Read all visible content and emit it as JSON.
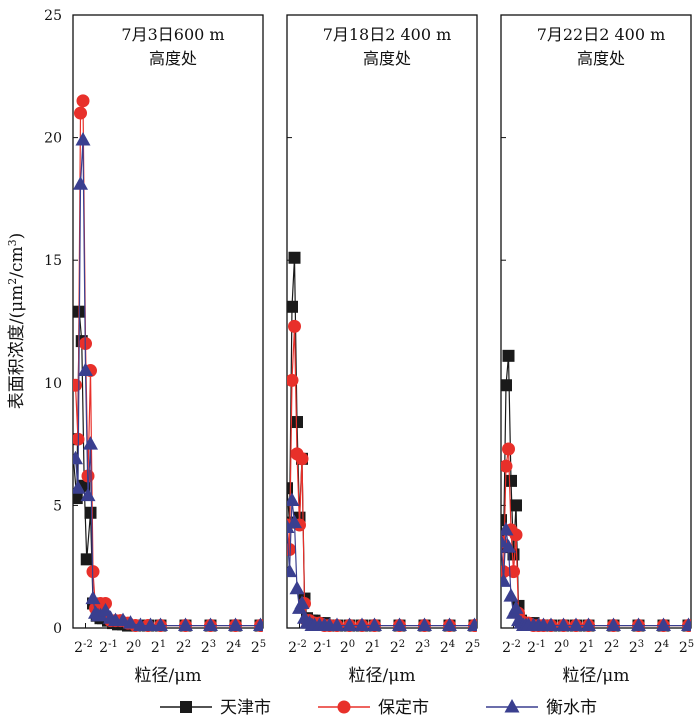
{
  "chart_data": {
    "type": "line",
    "ylabel_main": "表面积浓度/(μm",
    "ylabel_sup1": "2",
    "ylabel_mid": "/cm",
    "ylabel_sup2": "3",
    "ylabel_end": ")",
    "xlabel": "粒径/μm",
    "ylim": [
      0,
      25
    ],
    "yticks": [
      "0",
      "5",
      "10",
      "15",
      "20",
      "25"
    ],
    "xscale": "log2",
    "xlim_log2": [
      -2.5,
      5.1
    ],
    "xtick_exponents": [
      "-2",
      "-1",
      "0",
      "1",
      "2",
      "3",
      "4",
      "5"
    ],
    "xtick_base": "2",
    "legend": [
      {
        "name": "天津市",
        "color": "#1a1a1a",
        "marker": "square"
      },
      {
        "name": "保定市",
        "color": "#e8302a",
        "marker": "circle"
      },
      {
        "name": "衡水市",
        "color": "#3a3f8f",
        "marker": "triangle"
      }
    ],
    "panels": [
      {
        "title_line1": "7月3日600 m",
        "title_line2": "高度处",
        "series": [
          {
            "name": "天津市",
            "x": [
              -2.55,
              -2.35,
              -2.25,
              -2.15,
              -2.05,
              -1.95,
              -1.8,
              -1.7,
              -1.55,
              -1.4,
              -1.3,
              -1.1,
              -0.9,
              -0.7,
              -0.5,
              -0.3,
              0,
              0.5,
              1,
              2,
              3,
              4,
              5
            ],
            "y": [
              7.7,
              5.3,
              12.9,
              11.7,
              5.8,
              2.8,
              4.7,
              1.0,
              0.5,
              0.4,
              0.4,
              0.3,
              0.2,
              0.15,
              0.15,
              0.1,
              0.1,
              0.1,
              0.1,
              0.1,
              0.1,
              0.1,
              0.1
            ]
          },
          {
            "name": "保定市",
            "x": [
              -2.4,
              -2.3,
              -2.2,
              -2.1,
              -2.0,
              -1.9,
              -1.8,
              -1.7,
              -1.6,
              -1.5,
              -1.4,
              -1.3,
              -1.2,
              -1.0,
              -0.8,
              -0.6,
              -0.3,
              0,
              0.5,
              1,
              2,
              3,
              4,
              5
            ],
            "y": [
              9.9,
              7.7,
              21.0,
              21.5,
              11.6,
              6.2,
              10.5,
              2.3,
              0.8,
              0.7,
              1.0,
              0.9,
              1.0,
              0.3,
              0.3,
              0.3,
              0.2,
              0.1,
              0.1,
              0.1,
              0.1,
              0.1,
              0.1,
              0.1
            ]
          },
          {
            "name": "衡水市",
            "x": [
              -2.4,
              -2.3,
              -2.2,
              -2.1,
              -2.0,
              -1.9,
              -1.8,
              -1.7,
              -1.6,
              -1.5,
              -1.4,
              -1.2,
              -1.0,
              -0.8,
              -0.5,
              -0.2,
              0.2,
              0.6,
              1,
              2,
              3,
              4,
              5
            ],
            "y": [
              6.9,
              5.7,
              18.1,
              19.9,
              10.5,
              5.4,
              7.5,
              1.2,
              0.6,
              0.5,
              0.5,
              0.7,
              0.4,
              0.3,
              0.3,
              0.2,
              0.1,
              0.1,
              0.1,
              0.1,
              0.1,
              0.1,
              0.1
            ]
          }
        ]
      },
      {
        "title_line1": "7月18日2 400 m",
        "title_line2": "高度处",
        "series": [
          {
            "name": "天津市",
            "x": [
              -2.5,
              -2.4,
              -2.3,
              -2.2,
              -2.1,
              -2.0,
              -1.9,
              -1.8,
              -1.7,
              -1.6,
              -1.5,
              -1.4,
              -1.2,
              -1.0,
              -0.8,
              -0.5,
              0,
              0.5,
              1,
              2,
              3,
              4,
              5
            ],
            "y": [
              5.7,
              4.3,
              13.1,
              15.1,
              8.4,
              4.5,
              6.9,
              1.2,
              0.4,
              0.3,
              0.3,
              0.3,
              0.2,
              0.2,
              0.1,
              0.1,
              0.1,
              0.1,
              0.1,
              0.1,
              0.1,
              0.1,
              0.1
            ]
          },
          {
            "name": "保定市",
            "x": [
              -2.5,
              -2.4,
              -2.3,
              -2.2,
              -2.1,
              -2.0,
              -1.9,
              -1.8,
              -1.7,
              -1.6,
              -1.5,
              -1.4,
              -1.2,
              -1.0,
              -0.8,
              -0.5,
              0,
              0.5,
              1,
              2,
              3,
              4,
              5
            ],
            "y": [
              4.2,
              3.2,
              10.1,
              12.3,
              7.1,
              4.2,
              6.9,
              1.0,
              0.3,
              0.3,
              0.2,
              0.2,
              0.2,
              0.1,
              0.1,
              0.1,
              0.1,
              0.1,
              0.1,
              0.1,
              0.1,
              0.1,
              0.1
            ]
          },
          {
            "name": "衡水市",
            "x": [
              -2.5,
              -2.4,
              -2.3,
              -2.2,
              -2.1,
              -2.0,
              -1.9,
              -1.8,
              -1.7,
              -1.6,
              -1.5,
              -1.4,
              -1.2,
              -1.0,
              -0.8,
              -0.5,
              0,
              0.5,
              1,
              2,
              3,
              4,
              5
            ],
            "y": [
              4.1,
              2.3,
              5.2,
              4.3,
              1.6,
              0.8,
              1.0,
              0.4,
              0.2,
              0.2,
              0.1,
              0.1,
              0.1,
              0.1,
              0.1,
              0.1,
              0.1,
              0.1,
              0.1,
              0.1,
              0.1,
              0.1,
              0.1
            ]
          }
        ]
      },
      {
        "title_line1": "7月22日2 400 m",
        "title_line2": "高度处",
        "series": [
          {
            "name": "天津市",
            "x": [
              -2.5,
              -2.4,
              -2.3,
              -2.2,
              -2.1,
              -2.0,
              -1.9,
              -1.8,
              -1.7,
              -1.6,
              -1.5,
              -1.4,
              -1.2,
              -1.0,
              -0.8,
              -0.5,
              0,
              0.5,
              1,
              2,
              3,
              4,
              5
            ],
            "y": [
              4.4,
              3.3,
              9.9,
              11.1,
              6.0,
              3.0,
              5.0,
              0.9,
              0.3,
              0.2,
              0.2,
              0.2,
              0.2,
              0.1,
              0.1,
              0.1,
              0.1,
              0.1,
              0.1,
              0.1,
              0.1,
              0.1,
              0.1
            ]
          },
          {
            "name": "保定市",
            "x": [
              -2.5,
              -2.4,
              -2.3,
              -2.2,
              -2.1,
              -2.0,
              -1.9,
              -1.8,
              -1.7,
              -1.6,
              -1.5,
              -1.4,
              -1.2,
              -1.0,
              -0.8,
              -0.5,
              0,
              0.5,
              1,
              2,
              3,
              4,
              5
            ],
            "y": [
              3.5,
              2.3,
              6.6,
              7.3,
              4.0,
              2.3,
              3.8,
              0.6,
              0.3,
              0.2,
              0.2,
              0.2,
              0.1,
              0.1,
              0.1,
              0.1,
              0.1,
              0.1,
              0.1,
              0.1,
              0.1,
              0.1,
              0.1
            ]
          },
          {
            "name": "衡水市",
            "x": [
              -2.5,
              -2.4,
              -2.3,
              -2.2,
              -2.1,
              -2.0,
              -1.9,
              -1.8,
              -1.7,
              -1.6,
              -1.5,
              -1.4,
              -1.2,
              -1.0,
              -0.8,
              -0.5,
              0,
              0.5,
              1,
              2,
              3,
              4,
              5
            ],
            "y": [
              3.5,
              1.9,
              4.0,
              3.3,
              1.3,
              0.6,
              0.8,
              0.3,
              0.2,
              0.1,
              0.1,
              0.1,
              0.1,
              0.1,
              0.1,
              0.1,
              0.1,
              0.1,
              0.1,
              0.1,
              0.1,
              0.1,
              0.1
            ]
          }
        ]
      }
    ]
  }
}
